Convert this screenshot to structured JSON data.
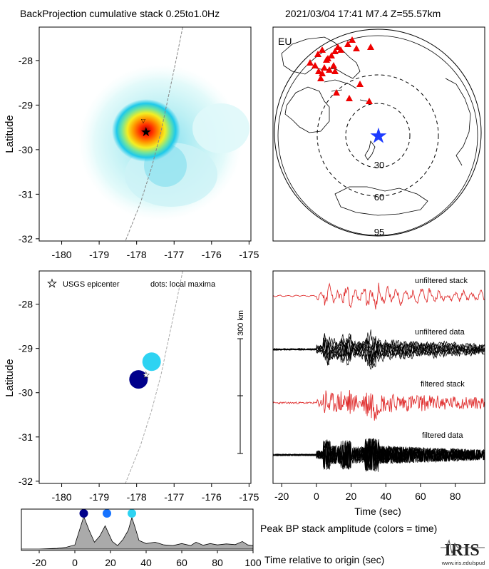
{
  "header": {
    "title_left": "BackProjection cumulative stack 0.25to1.0Hz",
    "title_right": "2021/03/04 17:41   M7.4  Z=55.57km"
  },
  "colors": {
    "heat": [
      "#e8fbfb",
      "#c6f3f3",
      "#8de6ee",
      "#3fd0ea",
      "#00b8ea",
      "#7ee39a",
      "#f3ef22",
      "#ff9a00",
      "#ff3000",
      "#cc0000"
    ],
    "trace_red": "#e03030",
    "trace_black": "#000000",
    "station": "#ee0000",
    "epicenter_blue": "#1e3cff",
    "dot_colors": [
      "#00008b",
      "#1673ff",
      "#2ed3f2"
    ],
    "amp_fill": "#aaaaaa"
  },
  "chart_data": [
    {
      "type": "heatmap",
      "panel": "cumulative-stack-map",
      "xlabel": "",
      "ylabel": "Latitude",
      "xlim": [
        -180.6,
        -174.95
      ],
      "ylim": [
        -32.05,
        -27.25
      ],
      "xticks": [
        -180,
        -179,
        -178,
        -177,
        -176,
        -175
      ],
      "yticks": [
        -28,
        -29,
        -30,
        -31,
        -32
      ],
      "peak": {
        "lon": -177.75,
        "lat": -29.55
      },
      "epicenter": {
        "lon": -177.75,
        "lat": -29.6,
        "marker": "star"
      },
      "trench": [
        [
          -176.77,
          -27.25
        ],
        [
          -176.95,
          -28.0
        ],
        [
          -177.15,
          -28.8
        ],
        [
          -177.35,
          -29.6
        ],
        [
          -177.6,
          -30.4
        ],
        [
          -177.9,
          -31.2
        ],
        [
          -178.3,
          -32.05
        ]
      ]
    },
    {
      "type": "map",
      "panel": "station-map",
      "label": "EU",
      "ring_labels": [
        "30",
        "60",
        "95"
      ],
      "epicenter_marker": "star",
      "station_count": 25
    },
    {
      "type": "scatter",
      "panel": "local-maxima-map",
      "xlabel": "",
      "ylabel": "Latitude",
      "xlim": [
        -180.6,
        -174.95
      ],
      "ylim": [
        -32.05,
        -27.25
      ],
      "xticks": [
        -180,
        -179,
        -178,
        -177,
        -176,
        -175
      ],
      "yticks": [
        -28,
        -29,
        -30,
        -31,
        -32
      ],
      "legend": {
        "star_label": "USGS epicenter",
        "dots_label": "dots: local maxima"
      },
      "scale_bar_label": "300 km",
      "epicenter": {
        "lon": -177.75,
        "lat": -29.6
      },
      "points": [
        {
          "lon": -177.6,
          "lat": -29.3,
          "time": 32
        },
        {
          "lon": -177.95,
          "lat": -29.7,
          "time": 5
        }
      ]
    },
    {
      "type": "line",
      "panel": "seismograms",
      "xlabel": "Time (sec)",
      "xlim": [
        -25,
        97
      ],
      "xticks": [
        -20,
        0,
        20,
        40,
        60,
        80
      ],
      "series": [
        {
          "name": "unfiltered stack"
        },
        {
          "name": "unfiltered data"
        },
        {
          "name": "filtered stack"
        },
        {
          "name": "filtered data"
        }
      ]
    },
    {
      "type": "area",
      "panel": "peak-amplitude",
      "xlabel": "Time relative to origin (sec)",
      "title": "Peak BP stack amplitude (colors = time)",
      "xlim": [
        -30,
        100
      ],
      "xticks": [
        -20,
        0,
        20,
        40,
        60,
        80,
        100
      ],
      "x": [
        -30,
        -20,
        -10,
        -5,
        0,
        2,
        5,
        8,
        11,
        14,
        17,
        19,
        21,
        24,
        27,
        30,
        32,
        34,
        36,
        40,
        45,
        50,
        55,
        60,
        65,
        68,
        72,
        76,
        80,
        85,
        90,
        94,
        97,
        100
      ],
      "values": [
        0.0,
        0.0,
        0.02,
        0.05,
        0.12,
        0.45,
        0.95,
        0.55,
        0.2,
        0.38,
        0.68,
        0.45,
        0.22,
        0.1,
        0.28,
        0.55,
        0.92,
        0.6,
        0.25,
        0.16,
        0.2,
        0.12,
        0.1,
        0.16,
        0.1,
        0.2,
        0.11,
        0.16,
        0.12,
        0.15,
        0.13,
        0.22,
        0.12,
        0.1
      ],
      "maxima": [
        {
          "time": 5,
          "color": "#00008b"
        },
        {
          "time": 18,
          "color": "#1673ff"
        },
        {
          "time": 32,
          "color": "#2ed3f2"
        }
      ]
    }
  ],
  "logo": {
    "text": "IRIS",
    "url_text": "www.iris.edu/spud"
  }
}
